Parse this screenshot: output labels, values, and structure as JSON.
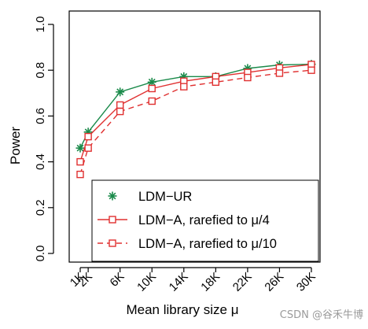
{
  "chart_data": {
    "type": "line",
    "xlabel": "Mean library size μ",
    "ylabel": "Power",
    "x_tick_labels": [
      "1K",
      "2K",
      "6K",
      "10K",
      "14K",
      "18K",
      "22K",
      "26K",
      "30K"
    ],
    "x": [
      1000,
      2000,
      6000,
      10000,
      14000,
      18000,
      22000,
      26000,
      30000
    ],
    "xlim": [
      1000,
      30000
    ],
    "ylim": [
      0,
      1
    ],
    "y_ticks": [
      "0.0",
      "0.2",
      "0.4",
      "0.6",
      "0.8",
      "1.0"
    ],
    "legend_position": "bottom-right",
    "grid": false,
    "series": [
      {
        "name": "LDM−UR",
        "color": "#1a8a4a",
        "marker": "asterisk",
        "dash": "solid",
        "values": [
          0.46,
          0.53,
          0.705,
          0.748,
          0.772,
          0.772,
          0.808,
          0.823,
          0.826
        ]
      },
      {
        "name": "LDM−A, rarefied to μ/4",
        "color": "#e03030",
        "marker": "square",
        "dash": "solid",
        "values": [
          0.4,
          0.51,
          0.648,
          0.72,
          0.752,
          0.772,
          0.79,
          0.81,
          0.825
        ]
      },
      {
        "name": "LDM−A, rarefied to μ/10",
        "color": "#e03030",
        "marker": "square",
        "dash": "dashed",
        "values": [
          0.345,
          0.46,
          0.62,
          0.665,
          0.728,
          0.748,
          0.768,
          0.787,
          0.8
        ]
      }
    ]
  },
  "watermark": "CSDN @谷禾牛博"
}
